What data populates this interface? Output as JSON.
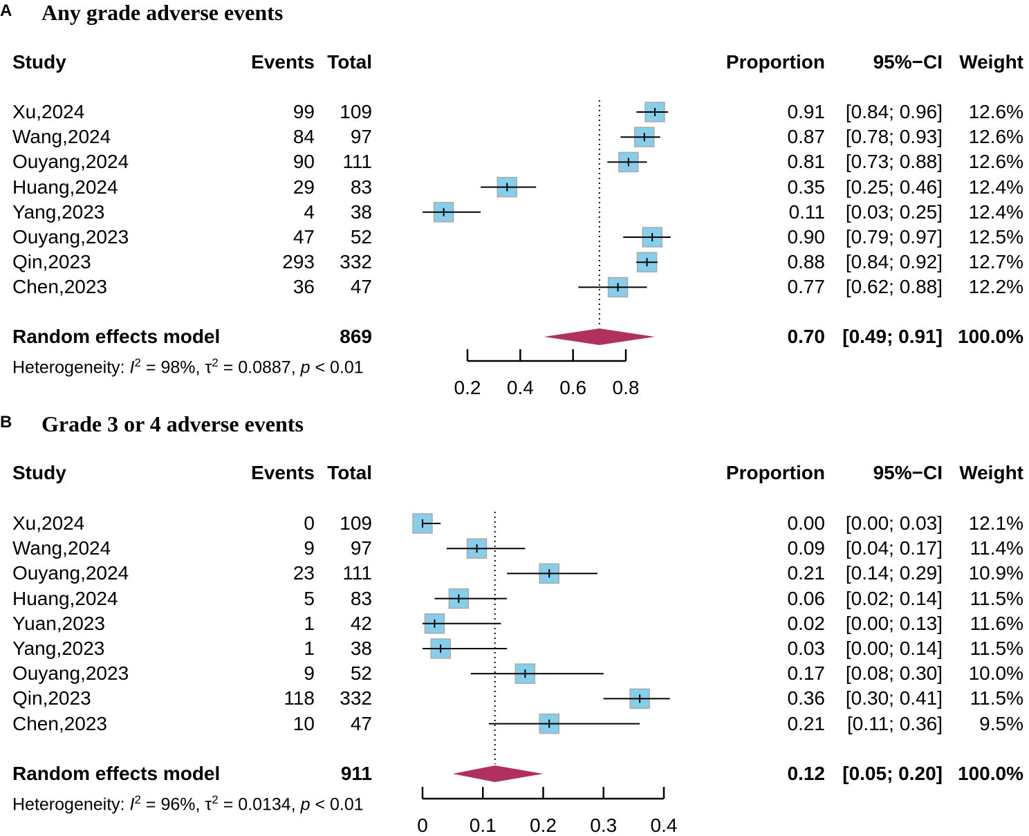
{
  "chart_data": [
    {
      "type": "forest",
      "panel_label": "A",
      "title": "Any grade adverse events",
      "headers": {
        "study": "Study",
        "events": "Events",
        "total": "Total",
        "proportion": "Proportion",
        "ci": "95%−CI",
        "weight": "Weight"
      },
      "studies": [
        {
          "study": "Xu,2024",
          "events": "99",
          "total": "109",
          "proportion": 0.91,
          "prop_text": "0.91",
          "lower": 0.84,
          "upper": 0.96,
          "ci_text": "[0.84; 0.96]",
          "weight": "12.6%"
        },
        {
          "study": "Wang,2024",
          "events": "84",
          "total": "97",
          "proportion": 0.87,
          "prop_text": "0.87",
          "lower": 0.78,
          "upper": 0.93,
          "ci_text": "[0.78; 0.93]",
          "weight": "12.6%"
        },
        {
          "study": "Ouyang,2024",
          "events": "90",
          "total": "111",
          "proportion": 0.81,
          "prop_text": "0.81",
          "lower": 0.73,
          "upper": 0.88,
          "ci_text": "[0.73; 0.88]",
          "weight": "12.6%"
        },
        {
          "study": "Huang,2024",
          "events": "29",
          "total": "83",
          "proportion": 0.35,
          "prop_text": "0.35",
          "lower": 0.25,
          "upper": 0.46,
          "ci_text": "[0.25; 0.46]",
          "weight": "12.4%"
        },
        {
          "study": "Yang,2023",
          "events": "4",
          "total": "38",
          "proportion": 0.11,
          "prop_text": "0.11",
          "lower": 0.03,
          "upper": 0.25,
          "ci_text": "[0.03; 0.25]",
          "weight": "12.4%"
        },
        {
          "study": "Ouyang,2023",
          "events": "47",
          "total": "52",
          "proportion": 0.9,
          "prop_text": "0.90",
          "lower": 0.79,
          "upper": 0.97,
          "ci_text": "[0.79; 0.97]",
          "weight": "12.5%"
        },
        {
          "study": "Qin,2023",
          "events": "293",
          "total": "332",
          "proportion": 0.88,
          "prop_text": "0.88",
          "lower": 0.84,
          "upper": 0.92,
          "ci_text": "[0.84; 0.92]",
          "weight": "12.7%"
        },
        {
          "study": "Chen,2023",
          "events": "36",
          "total": "47",
          "proportion": 0.77,
          "prop_text": "0.77",
          "lower": 0.62,
          "upper": 0.88,
          "ci_text": "[0.62; 0.88]",
          "weight": "12.2%"
        }
      ],
      "summary": {
        "label": "Random effects model",
        "total": "869",
        "proportion": 0.7,
        "prop_text": "0.70",
        "lower": 0.49,
        "upper": 0.91,
        "ci_text": "[0.49; 0.91]",
        "weight": "100.0%"
      },
      "heterogeneity": {
        "prefix": "Heterogeneity: ",
        "i2_sym": "I",
        "i2_val": " = 98%, ",
        "tau_sym": "τ",
        "tau_val": " = 0.0887, ",
        "p_sym": "p",
        "p_val": " < 0.01"
      },
      "xlim": [
        0.2,
        0.8
      ],
      "ticks": [
        0.2,
        0.4,
        0.6,
        0.8
      ],
      "tick_labels": [
        "0.2",
        "0.4",
        "0.6",
        "0.8"
      ],
      "colors": {
        "box": "#87ceeb",
        "box_border": "#a9a9a9",
        "diamond": "#b03060"
      }
    },
    {
      "type": "forest",
      "panel_label": "B",
      "title": "Grade 3 or 4 adverse events",
      "headers": {
        "study": "Study",
        "events": "Events",
        "total": "Total",
        "proportion": "Proportion",
        "ci": "95%−CI",
        "weight": "Weight"
      },
      "studies": [
        {
          "study": "Xu,2024",
          "events": "0",
          "total": "109",
          "proportion": 0.0,
          "prop_text": "0.00",
          "lower": 0.0,
          "upper": 0.03,
          "ci_text": "[0.00; 0.03]",
          "weight": "12.1%"
        },
        {
          "study": "Wang,2024",
          "events": "9",
          "total": "97",
          "proportion": 0.09,
          "prop_text": "0.09",
          "lower": 0.04,
          "upper": 0.17,
          "ci_text": "[0.04; 0.17]",
          "weight": "11.4%"
        },
        {
          "study": "Ouyang,2024",
          "events": "23",
          "total": "111",
          "proportion": 0.21,
          "prop_text": "0.21",
          "lower": 0.14,
          "upper": 0.29,
          "ci_text": "[0.14; 0.29]",
          "weight": "10.9%"
        },
        {
          "study": "Huang,2024",
          "events": "5",
          "total": "83",
          "proportion": 0.06,
          "prop_text": "0.06",
          "lower": 0.02,
          "upper": 0.14,
          "ci_text": "[0.02; 0.14]",
          "weight": "11.5%"
        },
        {
          "study": "Yuan,2023",
          "events": "1",
          "total": "42",
          "proportion": 0.02,
          "prop_text": "0.02",
          "lower": 0.0,
          "upper": 0.13,
          "ci_text": "[0.00; 0.13]",
          "weight": "11.6%"
        },
        {
          "study": "Yang,2023",
          "events": "1",
          "total": "38",
          "proportion": 0.03,
          "prop_text": "0.03",
          "lower": 0.0,
          "upper": 0.14,
          "ci_text": "[0.00; 0.14]",
          "weight": "11.5%"
        },
        {
          "study": "Ouyang,2023",
          "events": "9",
          "total": "52",
          "proportion": 0.17,
          "prop_text": "0.17",
          "lower": 0.08,
          "upper": 0.3,
          "ci_text": "[0.08; 0.30]",
          "weight": "10.0%"
        },
        {
          "study": "Qin,2023",
          "events": "118",
          "total": "332",
          "proportion": 0.36,
          "prop_text": "0.36",
          "lower": 0.3,
          "upper": 0.41,
          "ci_text": "[0.30; 0.41]",
          "weight": "11.5%"
        },
        {
          "study": "Chen,2023",
          "events": "10",
          "total": "47",
          "proportion": 0.21,
          "prop_text": "0.21",
          "lower": 0.11,
          "upper": 0.36,
          "ci_text": "[0.11; 0.36]",
          "weight": "9.5%"
        }
      ],
      "summary": {
        "label": "Random effects model",
        "total": "911",
        "proportion": 0.12,
        "prop_text": "0.12",
        "lower": 0.05,
        "upper": 0.2,
        "ci_text": "[0.05; 0.20]",
        "weight": "100.0%"
      },
      "heterogeneity": {
        "prefix": "Heterogeneity: ",
        "i2_sym": "I",
        "i2_val": " = 96%, ",
        "tau_sym": "τ",
        "tau_val": " = 0.0134, ",
        "p_sym": "p",
        "p_val": " < 0.01"
      },
      "xlim": [
        0.0,
        0.4
      ],
      "ticks": [
        0.0,
        0.1,
        0.2,
        0.3,
        0.4
      ],
      "tick_labels": [
        "0",
        "0.1",
        "0.2",
        "0.3",
        "0.4"
      ],
      "colors": {
        "box": "#87ceeb",
        "box_border": "#a9a9a9",
        "diamond": "#b03060"
      }
    }
  ]
}
